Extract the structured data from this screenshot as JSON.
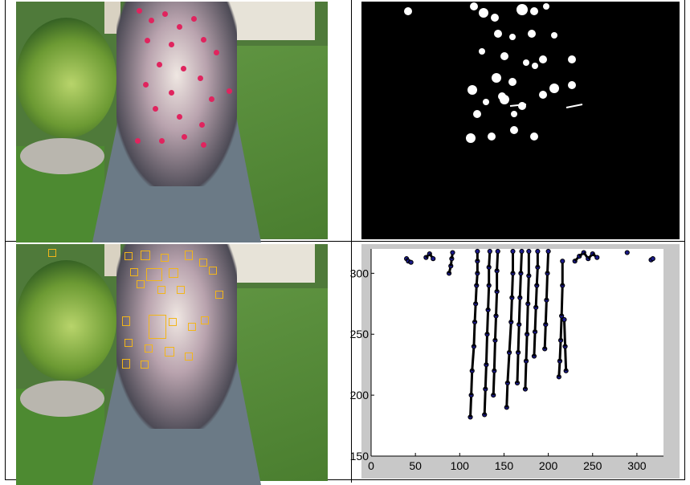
{
  "figure": {
    "panels": [
      {
        "id": "photo-top",
        "content": "crowd-photo"
      },
      {
        "id": "mask",
        "content": "binary-mask"
      },
      {
        "id": "photo-bottom",
        "content": "crowd-photo-with-detections"
      },
      {
        "id": "plot",
        "content": "scatter-plot"
      }
    ]
  },
  "colors": {
    "mask_background": "#000000",
    "mask_foreground": "#ffffff",
    "box_color": "#f2b51a",
    "plot_background": "#ffffff",
    "plot_margin": "#c8c8c8",
    "marker_fill": "#1a1a8a",
    "marker_edge": "#000000"
  },
  "chart_data": {
    "type": "scatter",
    "title": "",
    "xlabel": "",
    "ylabel": "",
    "xlim": [
      0,
      330
    ],
    "ylim": [
      150,
      320
    ],
    "xticks": [
      0,
      50,
      100,
      150,
      200,
      250,
      300
    ],
    "yticks": [
      150,
      200,
      250,
      300
    ],
    "grid": false,
    "tracks": [
      {
        "x": [
          112,
          113,
          114,
          116,
          117,
          118,
          119,
          120,
          120,
          120
        ],
        "y": [
          182,
          200,
          220,
          240,
          260,
          275,
          290,
          300,
          310,
          318
        ]
      },
      {
        "x": [
          128,
          129,
          130,
          131,
          132,
          133,
          133,
          134
        ],
        "y": [
          184,
          205,
          225,
          250,
          270,
          290,
          305,
          318
        ]
      },
      {
        "x": [
          138,
          139,
          140,
          141,
          142,
          142,
          143
        ],
        "y": [
          200,
          220,
          245,
          265,
          285,
          302,
          318
        ]
      },
      {
        "x": [
          153,
          154,
          156,
          158,
          159,
          160,
          160
        ],
        "y": [
          190,
          210,
          235,
          260,
          280,
          300,
          318
        ]
      },
      {
        "x": [
          165,
          166,
          167,
          168,
          169,
          170
        ],
        "y": [
          210,
          235,
          258,
          280,
          300,
          318
        ]
      },
      {
        "x": [
          174,
          175,
          176,
          177,
          178,
          178
        ],
        "y": [
          205,
          228,
          250,
          275,
          298,
          318
        ]
      },
      {
        "x": [
          184,
          185,
          186,
          187,
          188,
          188
        ],
        "y": [
          232,
          252,
          272,
          290,
          305,
          318
        ]
      },
      {
        "x": [
          196,
          197,
          198,
          199,
          200
        ],
        "y": [
          238,
          258,
          278,
          300,
          318
        ]
      },
      {
        "x": [
          212,
          213,
          214,
          215,
          216,
          216
        ],
        "y": [
          215,
          228,
          245,
          265,
          290,
          310
        ]
      },
      {
        "x": [
          220,
          219,
          218
        ],
        "y": [
          220,
          240,
          262
        ]
      }
    ],
    "clusters": [
      {
        "x": [
          40,
          42,
          45
        ],
        "y": [
          312,
          310,
          309
        ]
      },
      {
        "x": [
          62,
          66,
          70
        ],
        "y": [
          313,
          316,
          312
        ]
      },
      {
        "x": [
          88,
          90,
          91,
          92
        ],
        "y": [
          300,
          306,
          312,
          317
        ]
      },
      {
        "x": [
          230,
          235,
          240,
          245,
          250,
          255
        ],
        "y": [
          310,
          314,
          317,
          312,
          316,
          313
        ]
      },
      {
        "x": [
          289
        ],
        "y": [
          317
        ]
      },
      {
        "x": [
          316,
          318
        ],
        "y": [
          311,
          312
        ]
      }
    ]
  }
}
